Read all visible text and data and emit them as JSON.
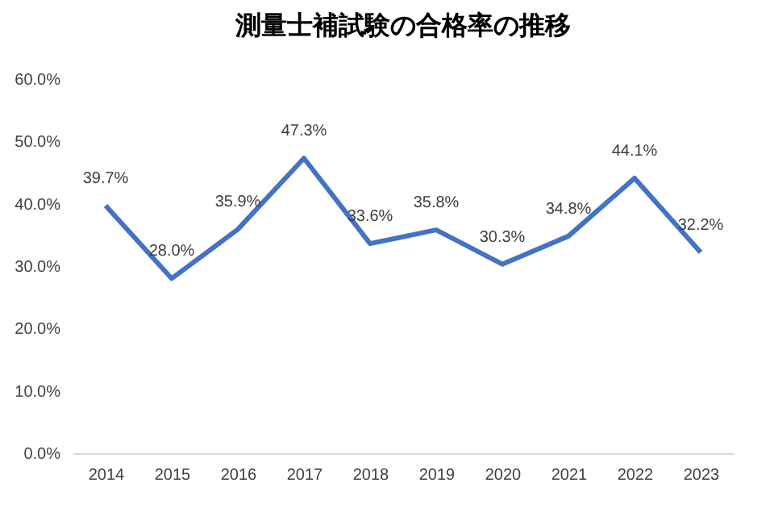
{
  "chart_data": {
    "type": "line",
    "title": "測量士補試験の合格率の推移",
    "categories": [
      "2014",
      "2015",
      "2016",
      "2017",
      "2018",
      "2019",
      "2020",
      "2021",
      "2022",
      "2023"
    ],
    "series": [
      {
        "color": "#4472c4",
        "values": [
          39.7,
          28.0,
          35.9,
          47.3,
          33.6,
          35.8,
          30.3,
          34.8,
          44.1,
          32.2
        ],
        "value_labels": [
          "39.7%",
          "28.0%",
          "35.9%",
          "47.3%",
          "33.6%",
          "35.8%",
          "30.3%",
          "34.8%",
          "44.1%",
          "32.2%"
        ]
      }
    ],
    "ylim": [
      0,
      60
    ],
    "yticks": [
      {
        "value": 0,
        "label": "0.0%"
      },
      {
        "value": 10,
        "label": "10.0%"
      },
      {
        "value": 20,
        "label": "20.0%"
      },
      {
        "value": 30,
        "label": "30.0%"
      },
      {
        "value": 40,
        "label": "40.0%"
      },
      {
        "value": 50,
        "label": "50.0%"
      },
      {
        "value": 60,
        "label": "60.0%"
      }
    ],
    "grid": false,
    "marker": "none",
    "line_style": "solid"
  }
}
